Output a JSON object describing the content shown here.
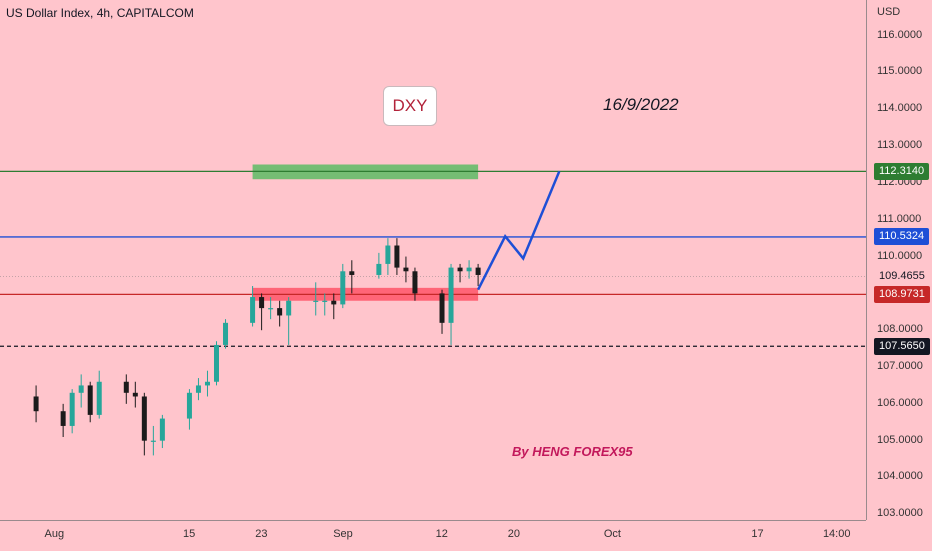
{
  "header": {
    "symbol_title": "US Dollar Index, 4h, CAPITALCOM"
  },
  "annotations": {
    "symbol_box": "DXY",
    "date_note": "16/9/2022",
    "author_note": "By HENG FOREX95"
  },
  "colors": {
    "background": "#ffc5cc",
    "candle_up": "#26a69a",
    "candle_down": "#1b1b1b",
    "green_level": "#2e7d32",
    "blue_level": "#1e4fd6",
    "red_level": "#c62828",
    "support_zone": "#ff5a6e",
    "resistance_zone": "#66bb6a",
    "projection": "#1e4fd6"
  },
  "chart_data": {
    "type": "candlestick",
    "title": "US Dollar Index, 4h, CAPITALCOM",
    "currency": "USD",
    "ylim": [
      102.9,
      116.75
    ],
    "y_ticks": [
      "116.0000",
      "115.0000",
      "114.0000",
      "113.0000",
      "112.0000",
      "111.0000",
      "110.0000",
      "109.0000",
      "108.0000",
      "107.0000",
      "106.0000",
      "105.0000",
      "104.0000",
      "103.0000"
    ],
    "x_ticks": [
      "Aug",
      "15",
      "23",
      "Sep",
      "12",
      "20",
      "Oct",
      "17",
      "14:00"
    ],
    "horizontal_levels": [
      {
        "value": 112.314,
        "label": "112.3140",
        "color": "#2e7d32",
        "style": "solid"
      },
      {
        "value": 110.5324,
        "label": "110.5324",
        "color": "#1e4fd6",
        "style": "solid"
      },
      {
        "value": 109.4655,
        "label": "109.4655",
        "color": "none",
        "style": "last-price"
      },
      {
        "value": 108.9731,
        "label": "108.9731",
        "color": "#c62828",
        "style": "solid"
      },
      {
        "value": 107.565,
        "label": "107.5650",
        "color": "#131722",
        "style": "dashed"
      }
    ],
    "zones": [
      {
        "name": "resistance",
        "from": "2022-08-22",
        "to": "2022-09-16",
        "low": 112.1,
        "high": 112.5
      },
      {
        "name": "support",
        "from": "2022-08-22",
        "to": "2022-09-16",
        "low": 108.8,
        "high": 109.15
      }
    ],
    "projection_path": [
      {
        "date": "2022-09-16",
        "value": 109.1
      },
      {
        "date": "2022-09-19",
        "value": 110.55
      },
      {
        "date": "2022-09-21",
        "value": 109.95
      },
      {
        "date": "2022-09-25",
        "value": 112.314
      }
    ],
    "series_daily_close": [
      {
        "date": "2022-07-29",
        "open": 106.2,
        "close": 105.8,
        "low": 105.5,
        "high": 106.5
      },
      {
        "date": "2022-08-01",
        "open": 105.8,
        "close": 105.4,
        "low": 105.1,
        "high": 106.0
      },
      {
        "date": "2022-08-02",
        "open": 105.4,
        "close": 106.3,
        "low": 105.2,
        "high": 106.4
      },
      {
        "date": "2022-08-03",
        "open": 106.3,
        "close": 106.5,
        "low": 105.9,
        "high": 106.8
      },
      {
        "date": "2022-08-04",
        "open": 106.5,
        "close": 105.7,
        "low": 105.5,
        "high": 106.6
      },
      {
        "date": "2022-08-05",
        "open": 105.7,
        "close": 106.6,
        "low": 105.6,
        "high": 106.9
      },
      {
        "date": "2022-08-08",
        "open": 106.6,
        "close": 106.3,
        "low": 106.0,
        "high": 106.8
      },
      {
        "date": "2022-08-09",
        "open": 106.3,
        "close": 106.2,
        "low": 105.9,
        "high": 106.6
      },
      {
        "date": "2022-08-10",
        "open": 106.2,
        "close": 105.0,
        "low": 104.6,
        "high": 106.3
      },
      {
        "date": "2022-08-11",
        "open": 105.0,
        "close": 105.0,
        "low": 104.6,
        "high": 105.4
      },
      {
        "date": "2022-08-12",
        "open": 105.0,
        "close": 105.6,
        "low": 104.8,
        "high": 105.7
      },
      {
        "date": "2022-08-15",
        "open": 105.6,
        "close": 106.3,
        "low": 105.3,
        "high": 106.4
      },
      {
        "date": "2022-08-16",
        "open": 106.3,
        "close": 106.5,
        "low": 106.1,
        "high": 106.7
      },
      {
        "date": "2022-08-17",
        "open": 106.5,
        "close": 106.6,
        "low": 106.2,
        "high": 106.9
      },
      {
        "date": "2022-08-18",
        "open": 106.6,
        "close": 107.6,
        "low": 106.5,
        "high": 107.7
      },
      {
        "date": "2022-08-19",
        "open": 107.6,
        "close": 108.2,
        "low": 107.5,
        "high": 108.3
      },
      {
        "date": "2022-08-22",
        "open": 108.2,
        "close": 108.9,
        "low": 108.1,
        "high": 109.2
      },
      {
        "date": "2022-08-23",
        "open": 108.9,
        "close": 108.6,
        "low": 108.0,
        "high": 109.0
      },
      {
        "date": "2022-08-24",
        "open": 108.6,
        "close": 108.6,
        "low": 108.3,
        "high": 108.9
      },
      {
        "date": "2022-08-25",
        "open": 108.6,
        "close": 108.4,
        "low": 108.1,
        "high": 108.8
      },
      {
        "date": "2022-08-26",
        "open": 108.4,
        "close": 108.8,
        "low": 107.6,
        "high": 108.9
      },
      {
        "date": "2022-08-29",
        "open": 108.8,
        "close": 108.8,
        "low": 108.4,
        "high": 109.3
      },
      {
        "date": "2022-08-30",
        "open": 108.8,
        "close": 108.8,
        "low": 108.4,
        "high": 109.0
      },
      {
        "date": "2022-08-31",
        "open": 108.8,
        "close": 108.7,
        "low": 108.3,
        "high": 109.0
      },
      {
        "date": "2022-09-01",
        "open": 108.7,
        "close": 109.6,
        "low": 108.6,
        "high": 109.8
      },
      {
        "date": "2022-09-02",
        "open": 109.6,
        "close": 109.5,
        "low": 109.0,
        "high": 109.9
      },
      {
        "date": "2022-09-05",
        "open": 109.5,
        "close": 109.8,
        "low": 109.4,
        "high": 110.1
      },
      {
        "date": "2022-09-06",
        "open": 109.8,
        "close": 110.3,
        "low": 109.5,
        "high": 110.5
      },
      {
        "date": "2022-09-07",
        "open": 110.3,
        "close": 109.7,
        "low": 109.5,
        "high": 110.5
      },
      {
        "date": "2022-09-08",
        "open": 109.7,
        "close": 109.6,
        "low": 109.3,
        "high": 110.0
      },
      {
        "date": "2022-09-09",
        "open": 109.6,
        "close": 109.0,
        "low": 108.8,
        "high": 109.7
      },
      {
        "date": "2022-09-12",
        "open": 109.0,
        "close": 108.2,
        "low": 107.9,
        "high": 109.1
      },
      {
        "date": "2022-09-13",
        "open": 108.2,
        "close": 109.7,
        "low": 107.6,
        "high": 109.8
      },
      {
        "date": "2022-09-14",
        "open": 109.7,
        "close": 109.6,
        "low": 109.3,
        "high": 109.8
      },
      {
        "date": "2022-09-15",
        "open": 109.6,
        "close": 109.7,
        "low": 109.4,
        "high": 109.9
      },
      {
        "date": "2022-09-16",
        "open": 109.7,
        "close": 109.5,
        "low": 109.2,
        "high": 109.8
      }
    ]
  }
}
